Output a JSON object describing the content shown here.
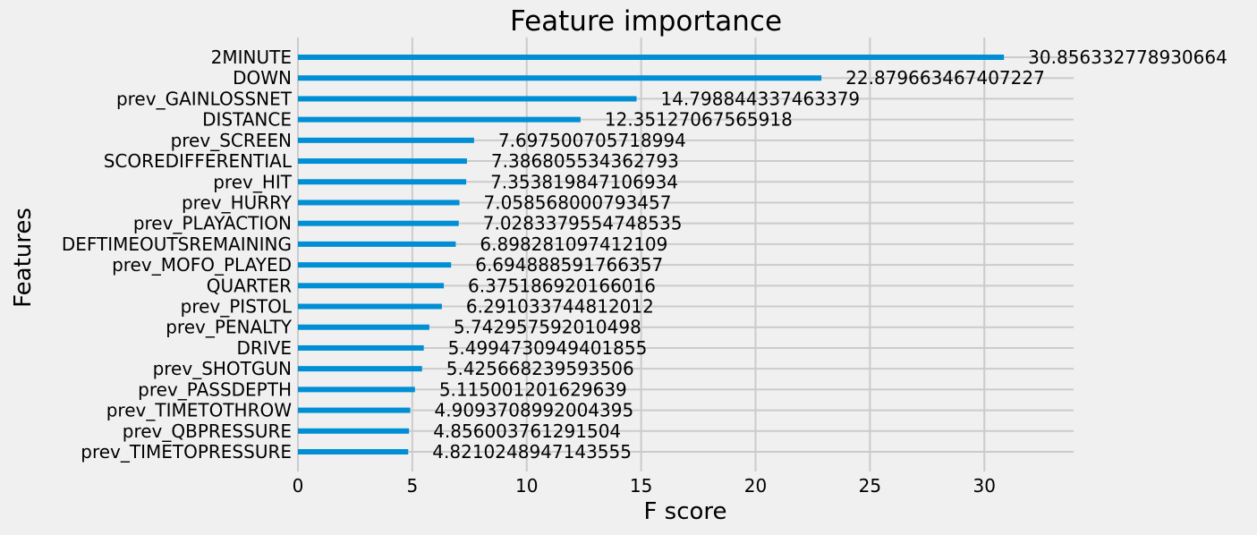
{
  "chart_data": {
    "type": "bar",
    "orientation": "horizontal",
    "title": "Feature importance",
    "xlabel": "F score",
    "ylabel": "Features",
    "xlim": [
      0,
      33.9
    ],
    "xticks": [
      0,
      5,
      10,
      15,
      20,
      25,
      30
    ],
    "grid": true,
    "bar_color": "#008fd5",
    "background_color": "#f0f0f0",
    "grid_color": "#cbcbcb",
    "categories": [
      "2MINUTE",
      "DOWN",
      "prev_GAINLOSSNET",
      "DISTANCE",
      "prev_SCREEN",
      "SCOREDIFFERENTIAL",
      "prev_HIT",
      "prev_HURRY",
      "prev_PLAYACTION",
      "DEFTIMEOUTSREMAINING",
      "prev_MOFO_PLAYED",
      "QUARTER",
      "prev_PISTOL",
      "prev_PENALTY",
      "DRIVE",
      "prev_SHOTGUN",
      "prev_PASSDEPTH",
      "prev_TIMETOTHROW",
      "prev_QBPRESSURE",
      "prev_TIMETOPRESSURE"
    ],
    "values": [
      30.856332778930664,
      22.879663467407227,
      14.798844337463379,
      12.35127067565918,
      7.697500705718994,
      7.386805534362793,
      7.353819847106934,
      7.058568000793457,
      7.0283379554748535,
      6.898281097412109,
      6.694888591766357,
      6.375186920166016,
      6.291033744812012,
      5.742957592010498,
      5.4994730949401855,
      5.425668239593506,
      5.115001201629639,
      4.9093708992004395,
      4.856003761291504,
      4.8210248947143555
    ],
    "value_labels": [
      "30.856332778930664",
      "22.879663467407227",
      "14.798844337463379",
      "12.35127067565918",
      "7.697500705718994",
      "7.386805534362793",
      "7.353819847106934",
      "7.058568000793457",
      "7.0283379554748535",
      "6.898281097412109",
      "6.694888591766357",
      "6.375186920166016",
      "6.291033744812012",
      "5.742957592010498",
      "5.4994730949401855",
      "5.425668239593506",
      "5.115001201629639",
      "4.9093708992004395",
      "4.856003761291504",
      "4.8210248947143555"
    ]
  }
}
